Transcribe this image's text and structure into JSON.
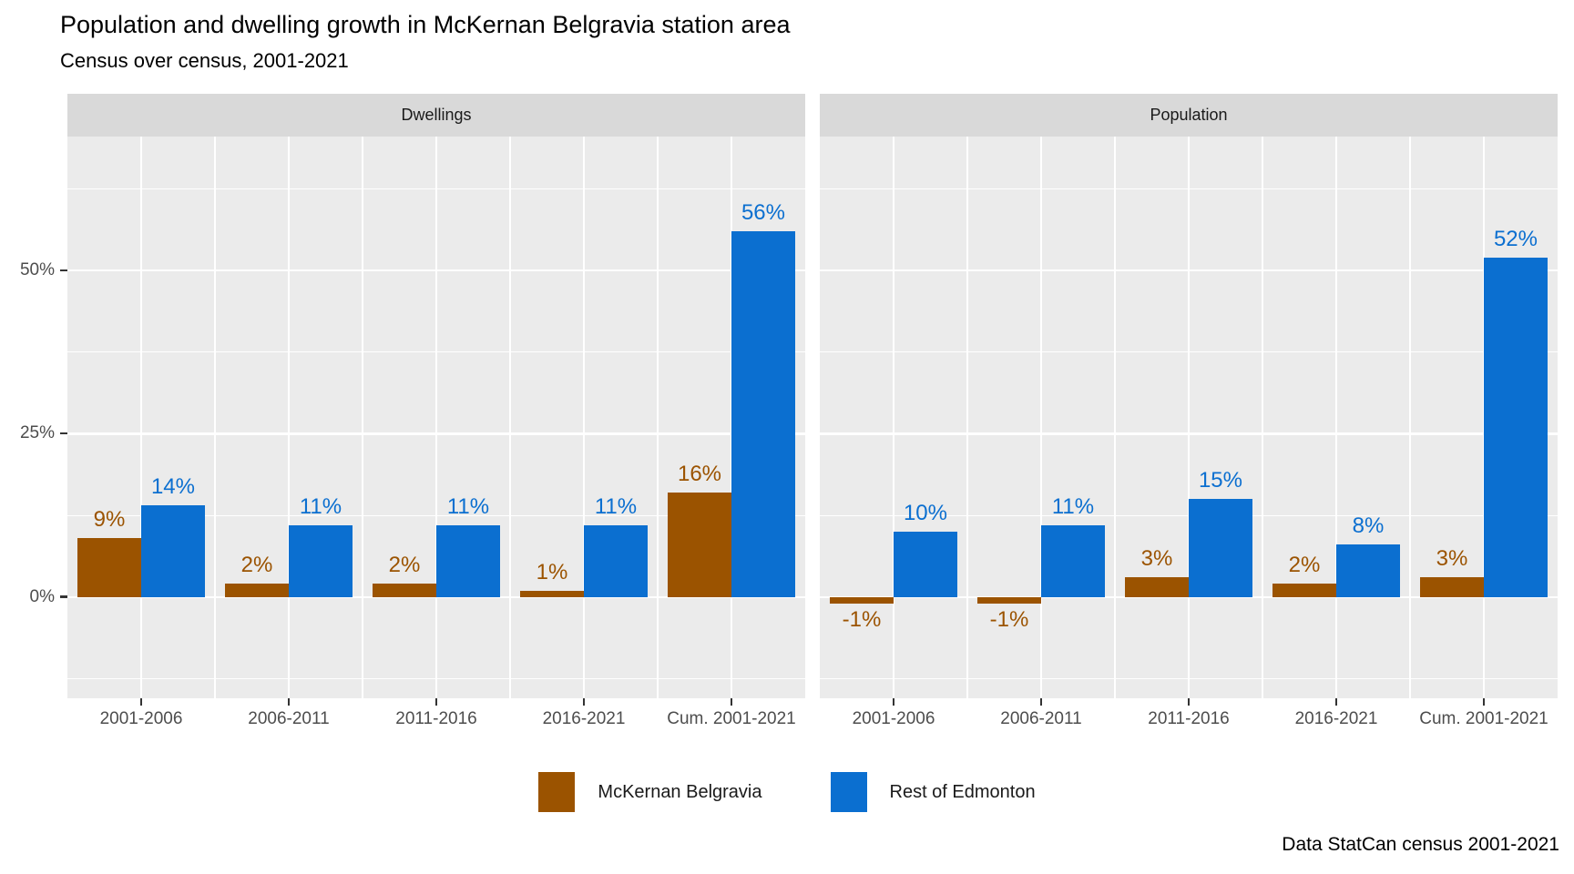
{
  "title": "Population and dwelling growth in McKernan Belgravia station area",
  "subtitle": "Census over census, 2001-2021",
  "caption": "Data StatCan census 2001-2021",
  "legend": {
    "items": [
      {
        "label": "McKernan Belgravia",
        "color": "#9b5300"
      },
      {
        "label": "Rest of Edmonton",
        "color": "#0b6fd0"
      }
    ]
  },
  "y_axis": {
    "ticks": [
      {
        "label": "0%",
        "value": 0
      },
      {
        "label": "25%",
        "value": 25
      },
      {
        "label": "50%",
        "value": 50
      }
    ]
  },
  "chart_data": {
    "type": "bar",
    "categories": [
      "2001-2006",
      "2006-2011",
      "2011-2016",
      "2016-2021",
      "Cum. 2001-2021"
    ],
    "facets": [
      {
        "label": "Dwellings",
        "series": [
          {
            "name": "McKernan Belgravia",
            "color": "#9b5300",
            "values": [
              9,
              2,
              2,
              1,
              16
            ]
          },
          {
            "name": "Rest of Edmonton",
            "color": "#0b6fd0",
            "values": [
              14,
              11,
              11,
              11,
              56
            ]
          }
        ]
      },
      {
        "label": "Population",
        "series": [
          {
            "name": "McKernan Belgravia",
            "color": "#9b5300",
            "values": [
              -1,
              -1,
              3,
              2,
              3
            ]
          },
          {
            "name": "Rest of Edmonton",
            "color": "#0b6fd0",
            "values": [
              10,
              11,
              15,
              8,
              52
            ]
          }
        ]
      }
    ],
    "value_suffix": "%",
    "xlabel": "",
    "ylabel": "",
    "ylim": [
      -15.5,
      70.5
    ],
    "grid": true,
    "legend_position": "bottom",
    "panel_bg": "#ebebeb",
    "strip_bg": "#d9d9d9",
    "grid_color": "#ffffff",
    "axis_text_color": "#4d4d4d",
    "h_major_gridlines": [
      0,
      25,
      50
    ],
    "h_minor_gridlines": [
      -12.5,
      12.5,
      37.5,
      62.5
    ]
  }
}
